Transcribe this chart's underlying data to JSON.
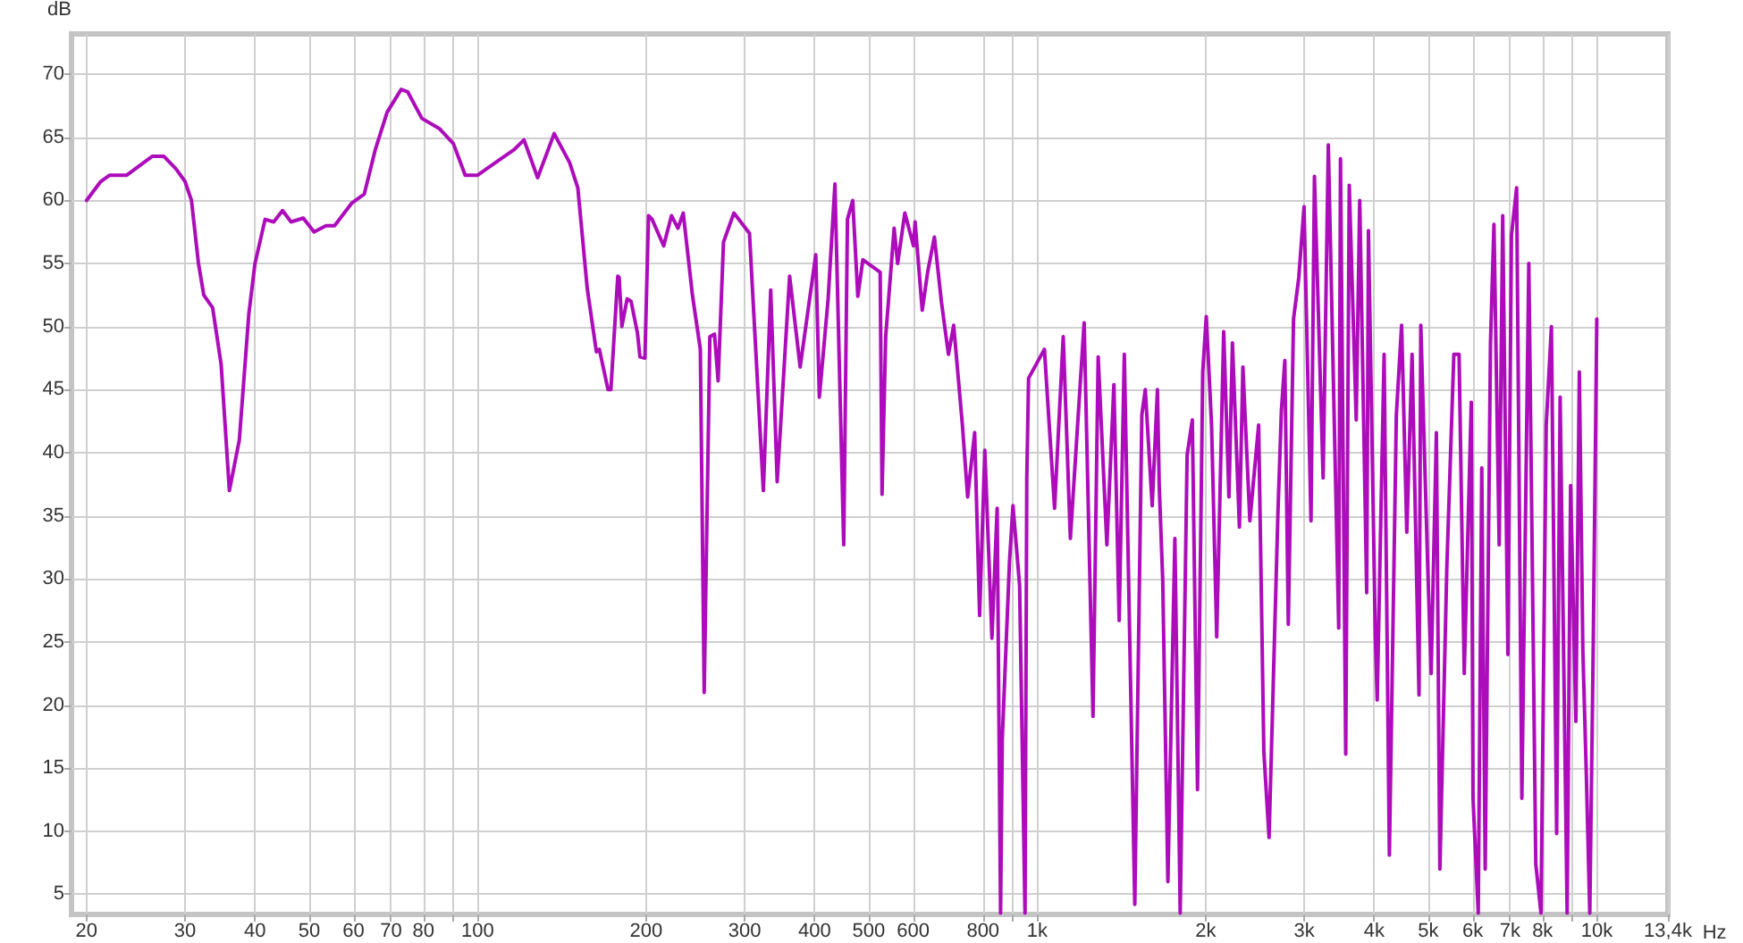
{
  "chart_data": {
    "type": "line",
    "xlabel": "Hz",
    "ylabel": "dB",
    "log": "x",
    "grid": true,
    "marker": "none",
    "line_style": "solid",
    "xlim": [
      18.8,
      13400
    ],
    "ylim": [
      3.4,
      73.2
    ],
    "xticks": [
      20,
      30,
      40,
      50,
      60,
      70,
      80,
      {
        "value": 90,
        "label": null
      },
      100,
      200,
      300,
      400,
      500,
      600,
      800,
      {
        "value": 900,
        "label": null
      },
      {
        "value": 1000,
        "label": "1k"
      },
      {
        "value": 2000,
        "label": "2k"
      },
      {
        "value": 3000,
        "label": "3k"
      },
      {
        "value": 4000,
        "label": "4k"
      },
      {
        "value": 5000,
        "label": "5k"
      },
      {
        "value": 6000,
        "label": "6k"
      },
      {
        "value": 7000,
        "label": "7k"
      },
      {
        "value": 8000,
        "label": "8k"
      },
      {
        "value": 9000,
        "label": null
      },
      {
        "value": 10000,
        "label": "10k"
      },
      {
        "value": 13400,
        "label": "13,4k"
      }
    ],
    "yticks": [
      5,
      10,
      15,
      20,
      25,
      30,
      35,
      40,
      45,
      50,
      55,
      60,
      65,
      70
    ],
    "series": [
      {
        "color": "#ad0cba",
        "x": [
          20,
          21.2,
          22,
          23.6,
          26.2,
          27.5,
          28.9,
          30,
          30.8,
          31.7,
          32.4,
          33.6,
          34.8,
          36,
          37.5,
          39,
          40,
          41.7,
          43.2,
          44.8,
          46.4,
          48.8,
          51,
          53.6,
          55.5,
          59.6,
          62.7,
          65.6,
          68.9,
          73,
          75,
          79.5,
          85.4,
          90.5,
          95,
          100,
          110,
          116,
          121,
          128,
          137,
          146,
          151,
          157,
          163,
          165,
          171,
          173,
          178,
          179,
          181,
          185,
          188,
          193,
          195,
          199,
          202,
          205,
          215,
          222,
          228,
          233,
          242,
          250,
          254,
          260,
          265,
          269,
          275,
          287,
          306,
          324,
          334,
          343,
          361,
          377,
          402,
          408,
          423,
          435,
          451,
          458,
          468,
          478,
          488,
          524,
          528,
          536,
          555,
          563,
          580,
          601,
          605,
          623,
          637,
          655,
          674,
          694,
          709,
          735,
          751,
          773,
          789,
          806,
          830,
          848,
          860,
          866,
          892,
          905,
          930,
          951,
          958,
          965,
          1030,
          1074,
          1113,
          1146,
          1213,
          1258,
          1285,
          1332,
          1371,
          1401,
          1431,
          1494,
          1538,
          1560,
          1605,
          1640,
          1652,
          1676,
          1712,
          1762,
          1801,
          1853,
          1893,
          1934,
          1976,
          2005,
          2049,
          2093,
          2154,
          2201,
          2233,
          2298,
          2331,
          2399,
          2487,
          2541,
          2596,
          2692,
          2731,
          2770,
          2810,
          2871,
          2934,
          2998,
          3085,
          3129,
          3243,
          3313,
          3458,
          3483,
          3559,
          3611,
          3716,
          3770,
          3880,
          3908,
          4021,
          4051,
          4168,
          4259,
          4383,
          4479,
          4576,
          4676,
          4812,
          4847,
          4988,
          5058,
          5168,
          5243,
          5395,
          5553,
          5674,
          5796,
          5966,
          6009,
          6140,
          6229,
          6318,
          6457,
          6550,
          6692,
          6790,
          6937,
          7038,
          7190,
          7346,
          7560,
          7780,
          7948,
          8121,
          8297,
          8477,
          8600,
          8851,
          8979,
          9175,
          9307,
          9443,
          9580,
          9716,
          9858,
          10000
        ],
        "values": [
          60,
          61.5,
          62,
          62,
          63.5,
          63.5,
          62.5,
          61.5,
          60,
          55,
          52.5,
          51.5,
          47,
          37,
          41,
          51,
          55,
          58.5,
          58.3,
          59.2,
          58.3,
          58.6,
          57.5,
          58,
          58,
          59.8,
          60.5,
          64,
          67,
          68.8,
          68.6,
          66.5,
          65.7,
          64.5,
          62,
          62,
          63.3,
          64,
          64.8,
          61.8,
          65.3,
          63,
          61,
          53,
          48,
          48.2,
          45,
          45,
          54,
          53.9,
          50,
          52.2,
          52,
          49.5,
          47.6,
          47.5,
          58.8,
          58.5,
          56.4,
          58.8,
          57.8,
          59,
          52.5,
          48.2,
          21,
          49.2,
          49.4,
          45.7,
          56.7,
          59,
          57.4,
          37,
          52.9,
          37.7,
          54,
          46.8,
          55.7,
          44.4,
          52.2,
          61.3,
          32.7,
          58.5,
          60,
          52.4,
          55.3,
          54.3,
          36.7,
          49.2,
          57.8,
          55,
          59,
          56.4,
          58.3,
          51.3,
          54.3,
          57.1,
          52,
          47.8,
          50.1,
          42.2,
          36.5,
          41.6,
          27.1,
          40.2,
          25.3,
          35.6,
          3.5,
          17.3,
          31.3,
          35.8,
          29.5,
          3.5,
          38,
          45.9,
          48.2,
          35.6,
          49.2,
          33.2,
          50.3,
          19.1,
          47.6,
          32.7,
          45.4,
          26.7,
          47.8,
          4.2,
          43,
          45,
          35.8,
          45,
          37.4,
          29.9,
          6,
          33.2,
          3.5,
          39.8,
          42.6,
          13.3,
          46.4,
          50.8,
          42.2,
          25.4,
          49.6,
          36.5,
          48.7,
          34.1,
          46.8,
          34.6,
          42.2,
          16.3,
          9.5,
          35.1,
          43.3,
          47.3,
          26.4,
          50.6,
          53.9,
          59.5,
          34.6,
          61.9,
          38,
          64.4,
          26.1,
          63.3,
          16.1,
          61.2,
          42.6,
          60,
          28.9,
          57.6,
          25.2,
          20.4,
          47.8,
          8.1,
          43,
          50.1,
          33.7,
          47.8,
          20.8,
          50.1,
          30.9,
          22.5,
          41.6,
          7,
          30.9,
          47.8,
          47.8,
          22.5,
          44,
          12.6,
          3.5,
          38.8,
          7,
          48.7,
          58.1,
          32.7,
          58.8,
          24,
          57.2,
          61,
          12.6,
          55,
          7.4,
          3.5,
          42.2,
          50,
          9.8,
          44.4,
          3.5,
          37.4,
          18.7,
          46.4,
          24.3,
          14.4,
          3.5,
          25.2,
          50.6
        ]
      }
    ]
  }
}
